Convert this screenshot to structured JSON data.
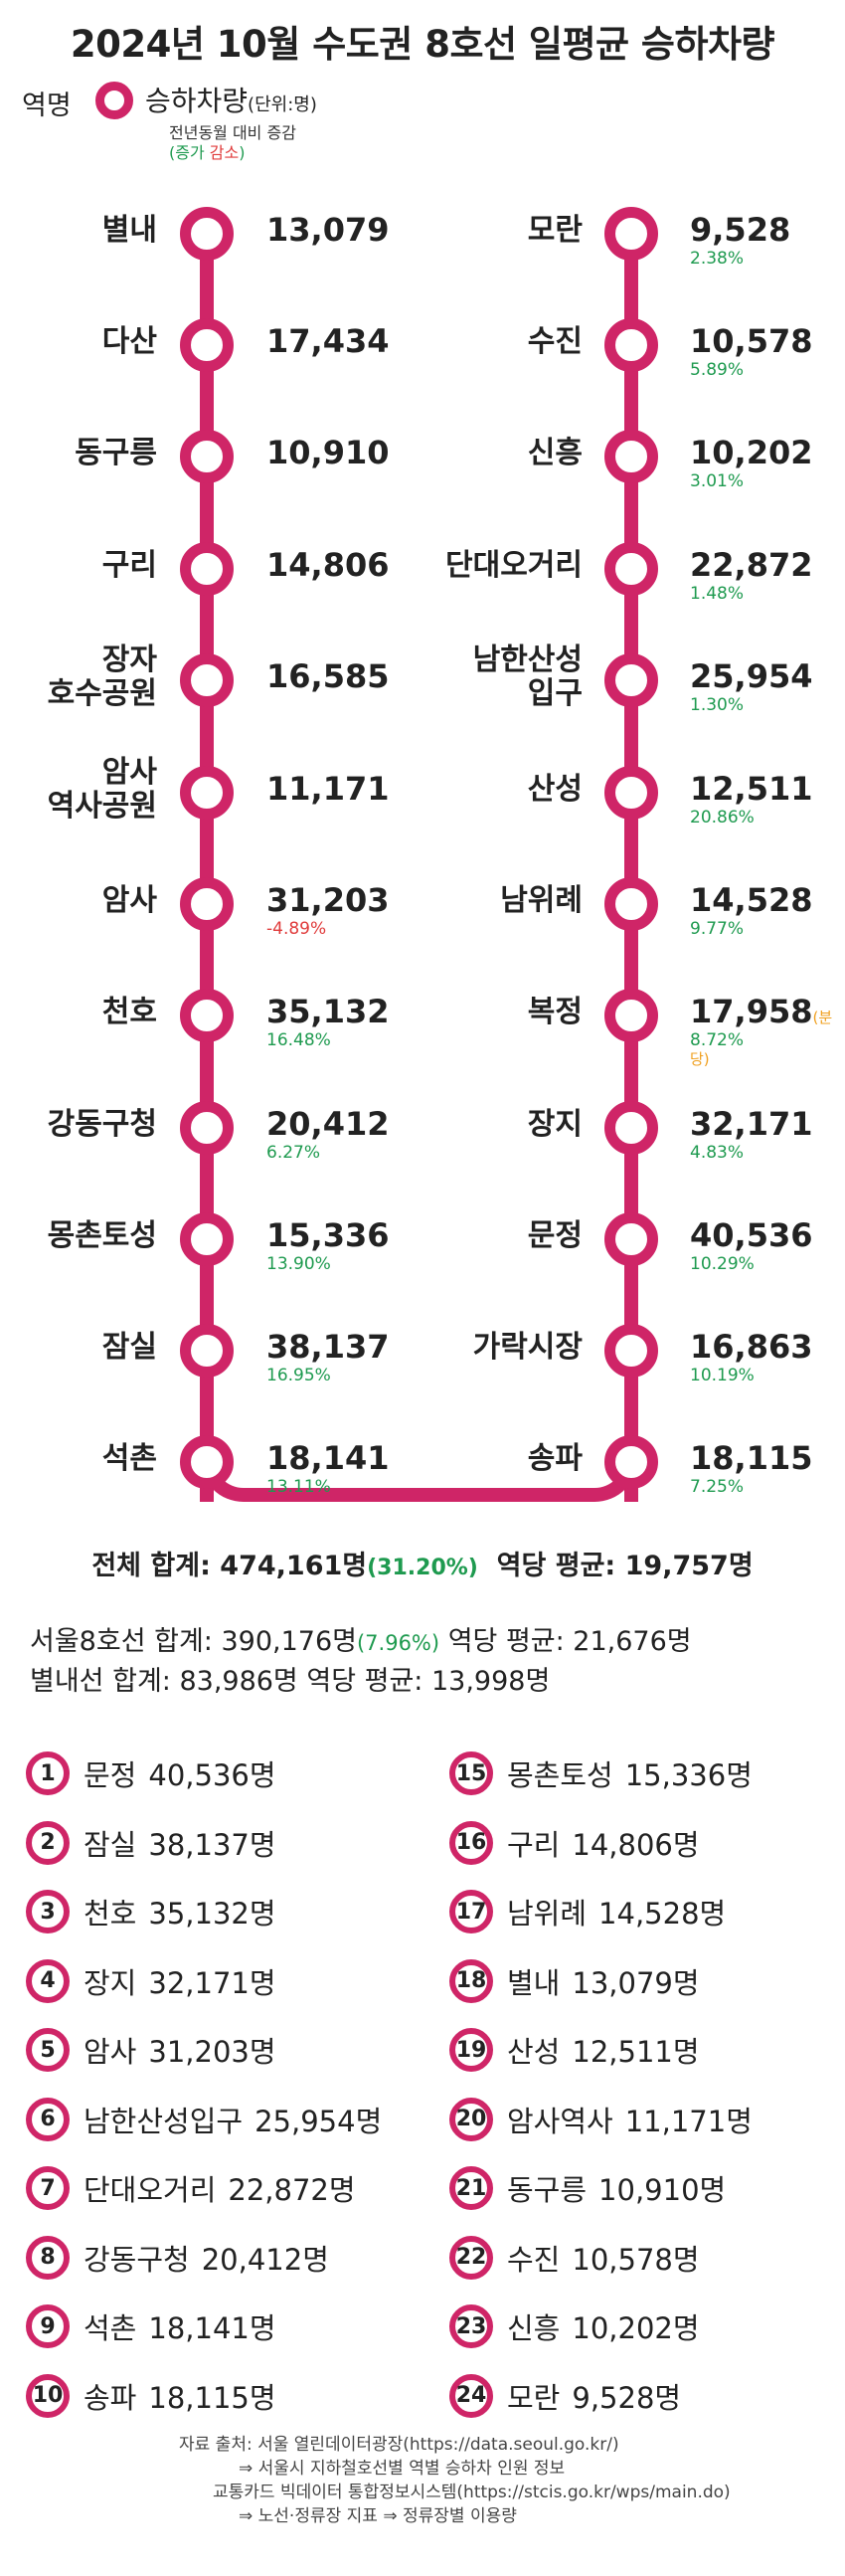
{
  "title": "2024년 10월 수도권 8호선 일평균 승하차량",
  "legend": {
    "station_name": "역명",
    "label": "승하차량",
    "unit": "(단위:명)",
    "sub": "전년동월 대비 증감",
    "increase": "증가",
    "decrease": "감소",
    "paren_open": "(",
    "paren_close": ")"
  },
  "colors": {
    "line": "#cf2567",
    "increase": "#1e9a4f",
    "decrease": "#e03b3b",
    "note": "#f0a020"
  },
  "left_column": [
    {
      "name": [
        "별내"
      ],
      "value": "13,079",
      "change": "",
      "dir": ""
    },
    {
      "name": [
        "다산"
      ],
      "value": "17,434",
      "change": "",
      "dir": ""
    },
    {
      "name": [
        "동구릉"
      ],
      "value": "10,910",
      "change": "",
      "dir": ""
    },
    {
      "name": [
        "구리"
      ],
      "value": "14,806",
      "change": "",
      "dir": ""
    },
    {
      "name": [
        "장자",
        "호수공원"
      ],
      "value": "16,585",
      "change": "",
      "dir": ""
    },
    {
      "name": [
        "암사",
        "역사공원"
      ],
      "value": "11,171",
      "change": "",
      "dir": ""
    },
    {
      "name": [
        "암사"
      ],
      "value": "31,203",
      "change": "-4.89%",
      "dir": "down"
    },
    {
      "name": [
        "천호"
      ],
      "value": "35,132",
      "change": "16.48%",
      "dir": "up"
    },
    {
      "name": [
        "강동구청"
      ],
      "value": "20,412",
      "change": "6.27%",
      "dir": "up"
    },
    {
      "name": [
        "몽촌토성"
      ],
      "value": "15,336",
      "change": "13.90%",
      "dir": "up"
    },
    {
      "name": [
        "잠실"
      ],
      "value": "38,137",
      "change": "16.95%",
      "dir": "up"
    },
    {
      "name": [
        "석촌"
      ],
      "value": "18,141",
      "change": "13.11%",
      "dir": "up"
    }
  ],
  "right_column": [
    {
      "name": [
        "모란"
      ],
      "value": "9,528",
      "change": "2.38%",
      "dir": "up",
      "note": ""
    },
    {
      "name": [
        "수진"
      ],
      "value": "10,578",
      "change": "5.89%",
      "dir": "up",
      "note": ""
    },
    {
      "name": [
        "신흥"
      ],
      "value": "10,202",
      "change": "3.01%",
      "dir": "up",
      "note": ""
    },
    {
      "name": [
        "단대오거리"
      ],
      "value": "22,872",
      "change": "1.48%",
      "dir": "up",
      "note": ""
    },
    {
      "name": [
        "남한산성",
        "입구"
      ],
      "value": "25,954",
      "change": "1.30%",
      "dir": "up",
      "note": ""
    },
    {
      "name": [
        "산성"
      ],
      "value": "12,511",
      "change": "20.86%",
      "dir": "up",
      "note": ""
    },
    {
      "name": [
        "남위례"
      ],
      "value": "14,528",
      "change": "9.77%",
      "dir": "up",
      "note": ""
    },
    {
      "name": [
        "복정"
      ],
      "value": "17,958",
      "change": "8.72%",
      "dir": "up",
      "note": "(분당)"
    },
    {
      "name": [
        "장지"
      ],
      "value": "32,171",
      "change": "4.83%",
      "dir": "up",
      "note": ""
    },
    {
      "name": [
        "문정"
      ],
      "value": "40,536",
      "change": "10.29%",
      "dir": "up",
      "note": ""
    },
    {
      "name": [
        "가락시장"
      ],
      "value": "16,863",
      "change": "10.19%",
      "dir": "up",
      "note": ""
    },
    {
      "name": [
        "송파"
      ],
      "value": "18,115",
      "change": "7.25%",
      "dir": "up",
      "note": ""
    }
  ],
  "totals": {
    "overall_label": "전체 합계: 474,161명",
    "overall_change": "(31.20%)",
    "overall_avg": "역당 평균: 19,757명",
    "seoul8_label": "서울8호선 합계: 390,176명",
    "seoul8_change": "(7.96%)",
    "seoul8_avg": "역당 평균: 21,676명",
    "byeollae": "별내선 합계: 83,986명 역당 평균: 13,998명"
  },
  "ranking": [
    {
      "rank": "1",
      "name": "문정",
      "value": "40,536명"
    },
    {
      "rank": "2",
      "name": "잠실",
      "value": "38,137명"
    },
    {
      "rank": "3",
      "name": "천호",
      "value": "35,132명"
    },
    {
      "rank": "4",
      "name": "장지",
      "value": "32,171명"
    },
    {
      "rank": "5",
      "name": "암사",
      "value": "31,203명"
    },
    {
      "rank": "6",
      "name": "남한산성입구",
      "value": "25,954명"
    },
    {
      "rank": "7",
      "name": "단대오거리",
      "value": "22,872명"
    },
    {
      "rank": "8",
      "name": "강동구청",
      "value": "20,412명"
    },
    {
      "rank": "9",
      "name": "석촌",
      "value": "18,141명"
    },
    {
      "rank": "10",
      "name": "송파",
      "value": "18,115명"
    },
    {
      "rank": "15",
      "name": "몽촌토성",
      "value": "15,336명"
    },
    {
      "rank": "16",
      "name": "구리",
      "value": "14,806명"
    },
    {
      "rank": "17",
      "name": "남위례",
      "value": "14,528명"
    },
    {
      "rank": "18",
      "name": "별내",
      "value": "13,079명"
    },
    {
      "rank": "19",
      "name": "산성",
      "value": "12,511명"
    },
    {
      "rank": "20",
      "name": "암사역사",
      "value": "11,171명"
    },
    {
      "rank": "21",
      "name": "동구릉",
      "value": "10,910명"
    },
    {
      "rank": "22",
      "name": "수진",
      "value": "10,578명"
    },
    {
      "rank": "23",
      "name": "신흥",
      "value": "10,202명"
    },
    {
      "rank": "24",
      "name": "모란",
      "value": "9,528명"
    }
  ],
  "source_lines": [
    "자료 출처: 서울 열린데이터광장(https://data.seoul.go.kr/)",
    "⇒ 서울시 지하철호선별 역별 승하차 인원 정보",
    "교통카드 빅데이터 통합정보시스템(https://stcis.go.kr/wps/main.do)",
    "⇒ 노선·정류장 지표 ⇒ 정류장별 이용량"
  ]
}
